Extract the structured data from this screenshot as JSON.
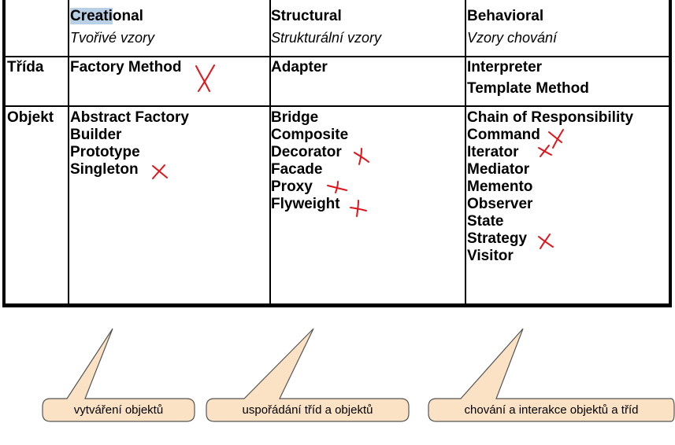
{
  "header": {
    "creational": {
      "title_highlight": "Creati",
      "title_rest": "onal",
      "subtitle": "Tvořivé vzory"
    },
    "structural": {
      "title": "Structural",
      "subtitle": "Strukturální vzory"
    },
    "behavioral": {
      "title": "Behavioral",
      "subtitle": "Vzory chování"
    }
  },
  "rows": {
    "class_label": "Třída",
    "object_label": "Objekt"
  },
  "class_row": {
    "creational": [
      "Factory Method"
    ],
    "structural": [
      "Adapter"
    ],
    "behavioral": [
      "Interpreter",
      "Template Method"
    ]
  },
  "object_row": {
    "creational": [
      "Abstract Factory",
      "Builder",
      "Prototype",
      "Singleton"
    ],
    "structural": [
      "Bridge",
      "Composite",
      "Decorator",
      "Facade",
      "Proxy",
      "Flyweight"
    ],
    "behavioral": [
      "Chain of Responsibility",
      "Command",
      "Iterator",
      "Mediator",
      "Memento",
      "Observer",
      "State",
      "Strategy",
      "Visitor"
    ]
  },
  "marked_patterns": [
    "Factory Method",
    "Singleton",
    "Decorator",
    "Proxy",
    "Flyweight",
    "Command",
    "Iterator",
    "Strategy"
  ],
  "callouts": [
    "vytváření objektů",
    "uspořádání tříd a objektů",
    "chování a interakce objektů a tříd"
  ],
  "colors": {
    "grid": "#000000",
    "highlight": "#b9cfe6",
    "marker": "#e0141b",
    "callout_fill": "#fbe2c4",
    "callout_stroke": "#555555"
  }
}
